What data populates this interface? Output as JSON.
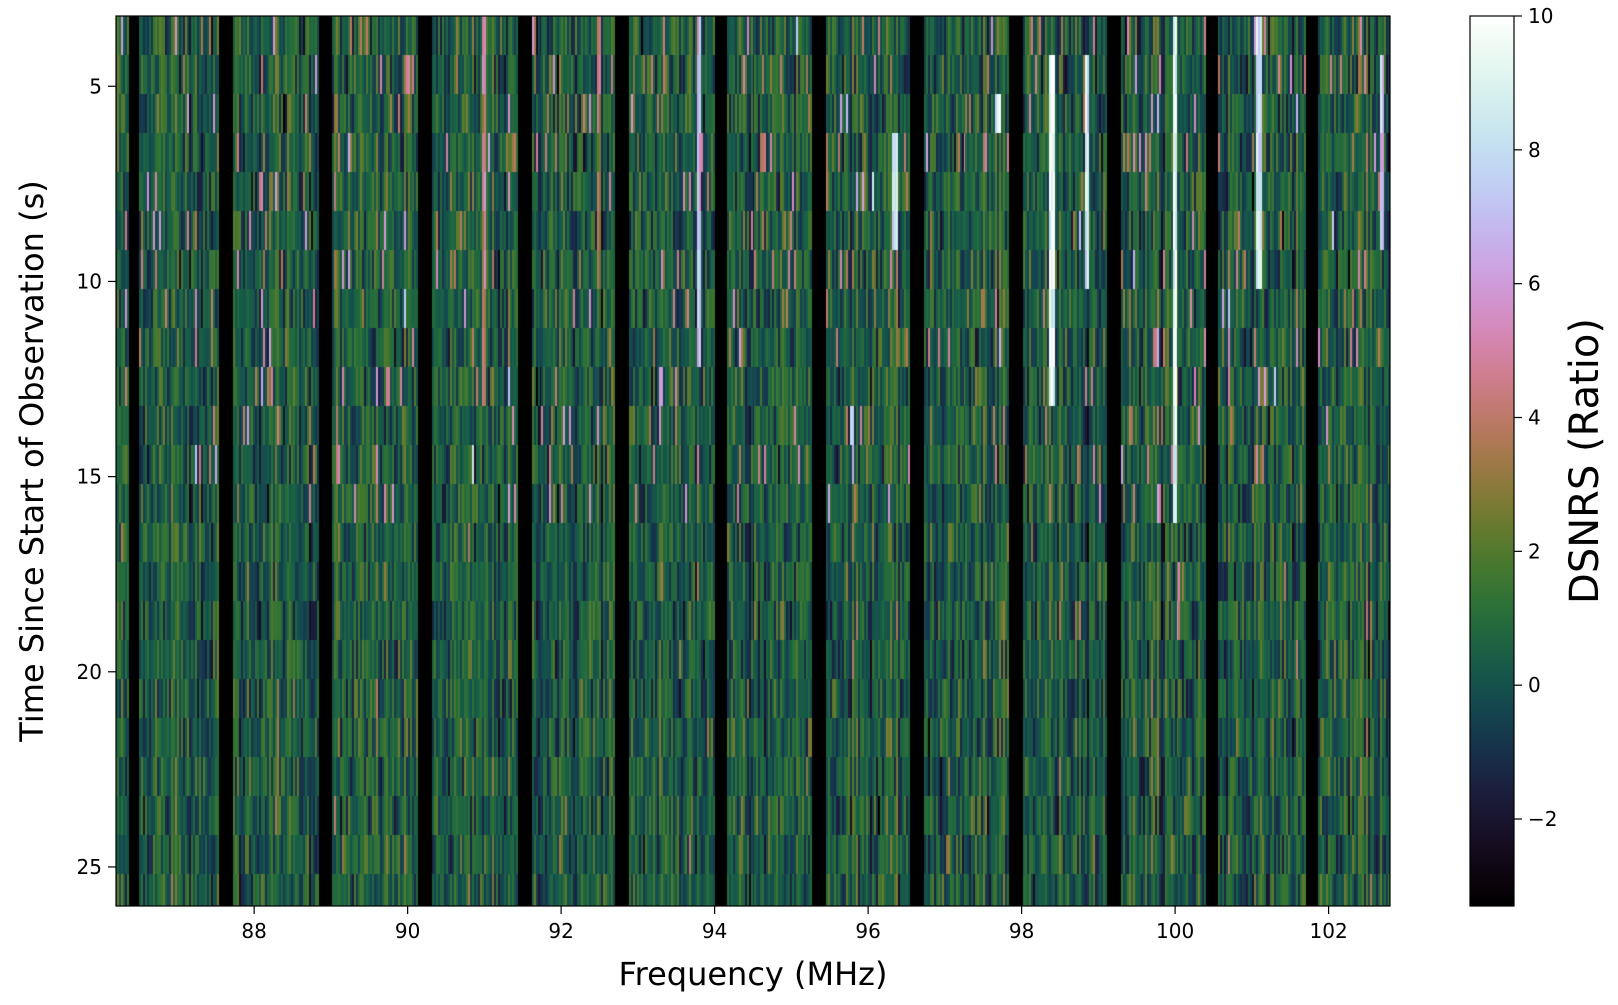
{
  "chart_data": {
    "type": "heatmap",
    "title": "",
    "xlabel": "Frequency (MHz)",
    "ylabel": "Time Since Start of Observation (s)",
    "colorbar_label": "DSNRS (Ratio)",
    "colormap": "cubehelix",
    "xlim": [
      86.2,
      102.8
    ],
    "ylim": [
      26.0,
      3.2
    ],
    "clim": [
      -3.3,
      10
    ],
    "x_ticks": [
      88,
      90,
      92,
      94,
      96,
      98,
      100,
      102
    ],
    "y_ticks": [
      5,
      10,
      15,
      20,
      25
    ],
    "colorbar_ticks": [
      -2,
      0,
      2,
      4,
      6,
      8,
      10
    ],
    "tick_labels": {
      "x": [
        "88",
        "90",
        "92",
        "94",
        "96",
        "98",
        "100",
        "102"
      ],
      "y": [
        "5",
        "10",
        "15",
        "20",
        "25"
      ],
      "colorbar": [
        "−2",
        "0",
        "2",
        "4",
        "6",
        "8",
        "10"
      ]
    },
    "time_bin_s": 1.0,
    "blank_bands_mhz": [
      [
        86.38,
        86.52
      ],
      [
        87.55,
        87.72
      ],
      [
        88.85,
        89.02
      ],
      [
        90.15,
        90.32
      ],
      [
        91.45,
        91.62
      ],
      [
        92.72,
        92.9
      ],
      [
        94.0,
        94.17
      ],
      [
        95.27,
        95.45
      ],
      [
        96.55,
        96.72
      ],
      [
        97.85,
        98.02
      ],
      [
        99.12,
        99.3
      ],
      [
        100.42,
        100.58
      ],
      [
        101.7,
        101.87
      ]
    ],
    "strong_signals": [
      {
        "f_mhz": 93.8,
        "t_s": [
          3.5,
          12.0
        ],
        "value": 7
      },
      {
        "f_mhz": 96.35,
        "t_s": [
          6.0,
          9.5
        ],
        "value": 9
      },
      {
        "f_mhz": 98.4,
        "t_s": [
          4.0,
          13.5
        ],
        "value": 10
      },
      {
        "f_mhz": 98.85,
        "t_s": [
          4.5,
          10.5
        ],
        "value": 9
      },
      {
        "f_mhz": 100.0,
        "t_s": [
          3.2,
          16.0
        ],
        "value": 10
      },
      {
        "f_mhz": 100.05,
        "t_s": [
          17.0,
          19.0
        ],
        "value": 5
      },
      {
        "f_mhz": 101.1,
        "t_s": [
          3.5,
          10.0
        ],
        "value": 9
      },
      {
        "f_mhz": 102.7,
        "t_s": [
          4.0,
          9.0
        ],
        "value": 8
      },
      {
        "f_mhz": 91.0,
        "t_s": [
          3.5,
          13.0
        ],
        "value": 5
      },
      {
        "f_mhz": 95.8,
        "t_s": [
          13.0,
          14.0
        ],
        "value": 9
      },
      {
        "f_mhz": 97.7,
        "t_s": [
          5.0,
          6.0
        ],
        "value": 9
      },
      {
        "f_mhz": 92.5,
        "t_s": [
          3.5,
          10.0
        ],
        "value": 4
      }
    ],
    "background_mean": 0.4,
    "background_std": 0.9
  }
}
